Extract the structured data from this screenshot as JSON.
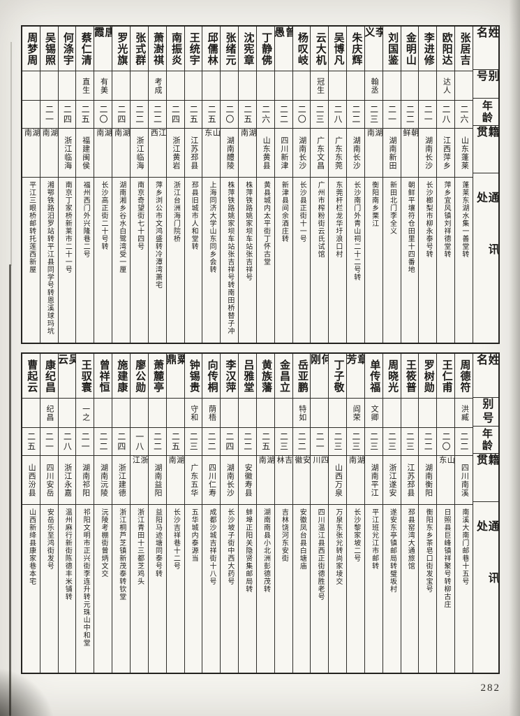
{
  "page": {
    "number": "282"
  },
  "table_headers": {
    "name": "姓名",
    "alias": "别号",
    "age": "年龄",
    "native_place": "籍贯",
    "address": "通讯处"
  },
  "tables": [
    {
      "entries": [
        {
          "name": "张居吉",
          "alias": "",
          "age": "二六",
          "native": "山东蓬莱",
          "address": "蓬莱东湖水集一善堂转"
        },
        {
          "name": "欧阳达",
          "alias": "达人",
          "age": "二八",
          "native": "江西萍乡",
          "address": "萍乡宜风镇刘祥德堂转"
        },
        {
          "name": "李进修",
          "alias": "",
          "age": "二一",
          "native": "湖南长沙",
          "address": "长沙榔梨市柳永泰号转"
        },
        {
          "name": "金明山",
          "alias": "",
          "age": "二二",
          "native": "朝鲜",
          "address": "朝鲜平壤符仓田里十四番地"
        },
        {
          "name": "刘国鉴",
          "alias": "",
          "age": "二一",
          "native": "湖南新田",
          "address": "新田北门李全义"
        },
        {
          "name": "李义",
          "alias": "翰丞",
          "age": "二三",
          "native": "湖南",
          "address": "衡阳南乡栗江"
        },
        {
          "name": "朱庆辉",
          "alias": "",
          "age": "二二",
          "native": "湖南长沙",
          "address": "长沙南门外青山祠二十二号转"
        },
        {
          "name": "吴博凡",
          "alias": "",
          "age": "二八",
          "native": "广东东莞",
          "address": "东莞杆栏龙华圩浪口村"
        },
        {
          "name": "云大机",
          "alias": "冠生",
          "age": "二三",
          "native": "广东文昌",
          "address": "广州市榨粉街云氏试馆"
        },
        {
          "name": "杨叹岐",
          "alias": "",
          "age": "二〇",
          "native": "湖南长沙",
          "address": "长沙县正街十一号"
        },
        {
          "name": "曾愚",
          "alias": "",
          "age": "二二",
          "native": "四川新津",
          "address": "新津县间余酒庄转"
        },
        {
          "name": "丁静佛",
          "alias": "",
          "age": "二六",
          "native": "山东黄县",
          "address": "黄县城内太平街丁怀古堂"
        },
        {
          "name": "沈宪章",
          "alias": "",
          "age": "二五",
          "native": "湖南",
          "address": "株萍铁路姚家坝车站张吉祥号"
        },
        {
          "name": "张绪元",
          "alias": "",
          "age": "二〇",
          "native": "湖南醴陵",
          "address": "株萍铁路姚家坝车站张吉祥号转南田桥替子冲"
        },
        {
          "name": "邱儒林",
          "alias": "",
          "age": "二五",
          "native": "山东",
          "address": "上海同济大学山东同乡会转"
        },
        {
          "name": "王统宇",
          "alias": "",
          "age": "二五",
          "native": "江苏邳县",
          "address": "邳县旧城市人和堂转"
        },
        {
          "name": "南振炎",
          "alias": "",
          "age": "二四",
          "native": "浙江黄岩",
          "address": "浙江台洲海门院桥"
        },
        {
          "name": "萧澍祺",
          "alias": "考成",
          "age": "二二",
          "native": "江西",
          "address": "萍乡浏公市文鸿盛转冷潭湾萧宅"
        },
        {
          "name": "张式群",
          "alias": "",
          "age": "二二",
          "native": "浙江临海",
          "address": "南京奇望街七十四号"
        },
        {
          "name": "罗光旗",
          "alias": "",
          "age": "二四",
          "native": "湖南",
          "address": "湖南湘乡谷水白鹭湾受一厘"
        },
        {
          "name": "唐霞",
          "alias": "有美",
          "age": "二〇",
          "native": "湖南",
          "address": "长沙高正街二十号转"
        },
        {
          "name": "蔡仁清",
          "alias": "直生",
          "age": "二五",
          "native": "福建闽侯",
          "address": "福州西门外兴隆巷二号"
        },
        {
          "name": "何涤宇",
          "alias": "",
          "age": "二四",
          "native": "浙江临海",
          "address": "南京丁家桥新莱市二十一号"
        },
        {
          "name": "吴锡照",
          "alias": "",
          "age": "二一",
          "native": "湖南",
          "address": "湘鄂铁路汨罗站转平江县同学号转恩溪球玛坑"
        },
        {
          "name": "周梦周",
          "alias": "",
          "age": "",
          "native": "湖南",
          "address": "平江三眼桥邮转托莲西新屋"
        }
      ]
    },
    {
      "entries": [
        {
          "name": "周德符",
          "alias": "洪臧",
          "age": "二二",
          "native": "四川南溪",
          "address": "南溪大南门邮巷十五号"
        },
        {
          "name": "王仁甫",
          "alias": "",
          "age": "二〇",
          "native": "山东",
          "address": "日照县巨峰镇祥聚号转柳古庄"
        },
        {
          "name": "罗树勋",
          "alias": "",
          "age": "二二",
          "native": "湖南衡阳",
          "address": "衡阳东乡茶皂口街发宝号"
        },
        {
          "name": "王筱普",
          "alias": "",
          "age": "二三",
          "native": "江苏邳县",
          "address": "邳县窑湾大通旅馆"
        },
        {
          "name": "周晓光",
          "alias": "",
          "age": "二三",
          "native": "浙江遂安",
          "address": "遂安东亭镇邮局转璧坂村"
        },
        {
          "name": "单传福",
          "alias": "文卿",
          "age": "二三",
          "native": "湖南平江",
          "address": "平江班兊江市邮转"
        },
        {
          "name": "章芳",
          "alias": "阎荣",
          "age": "二三",
          "native": "湖南",
          "address": "长沙黎家坡二号"
        },
        {
          "name": "丁子敬",
          "alias": "",
          "age": "二三",
          "native": "山西万泉",
          "address": "万泉东张兊转尚家堎交"
        },
        {
          "name": "何刚",
          "alias": "",
          "age": "二一",
          "native": "四川",
          "address": "四川温江县西正街德胜老号"
        },
        {
          "name": "岳亚鹏",
          "alias": "特如",
          "age": "二二",
          "native": "安徽",
          "address": "安徽凤台县白塘庙"
        },
        {
          "name": "金昌立",
          "alias": "",
          "age": "二三",
          "native": "吉林",
          "address": "吉林饶河东安街"
        },
        {
          "name": "黄族藩",
          "alias": "",
          "age": "二五",
          "native": "湖南",
          "address": "湖南南县小北洲彭德茂转"
        },
        {
          "name": "吕雅堂",
          "alias": "",
          "age": "二二",
          "native": "安徽寿县",
          "address": "蚌埠正阳关隐贤集邮局转"
        },
        {
          "name": "李汉萍",
          "alias": "",
          "age": "二四",
          "native": "湖南长沙",
          "address": "长沙坡子街中西大药号"
        },
        {
          "name": "向传桐",
          "alias": "荫梧",
          "age": "二二",
          "native": "四川仁寿",
          "address": "成都沙城吉祥街十八号"
        },
        {
          "name": "钟锡贵",
          "alias": "守和",
          "age": "二三",
          "native": "广东五华",
          "address": "五华城内泰源当"
        },
        {
          "name": "粟鼎",
          "alias": "",
          "age": "二五",
          "native": "湖南",
          "address": "长沙吉祥巷十二号"
        },
        {
          "name": "萧麓亭",
          "alias": "",
          "age": "二二",
          "native": "湖南益阳",
          "address": "益阳马迹塘同泰号转"
        },
        {
          "name": "廖公勋",
          "alias": "",
          "age": "一八",
          "native": "浙江",
          "address": "浙江青田十三都芝鸡头"
        },
        {
          "name": "施建康",
          "alias": "",
          "age": "二四",
          "native": "浙江建德",
          "address": "浙江桐芦芝镇新茂泰转钦堂"
        },
        {
          "name": "曾祥恒",
          "alias": "",
          "age": "二二",
          "native": "湖南沅陵",
          "address": "沅陵考棚街曾炳文交"
        },
        {
          "name": "王驭寰",
          "alias": "一之",
          "age": "二一",
          "native": "湖南祁阳",
          "address": "祁阳文明市正兴街李连升转元珠山中和堂"
        },
        {
          "name": "吴云",
          "alias": "",
          "age": "二八",
          "native": "浙江永嘉",
          "address": "温州麻行新街陈德丰米铺转"
        },
        {
          "name": "康纪昌",
          "alias": "纪昌",
          "age": "二一",
          "native": "四川安岳",
          "address": "安岳乐至鸿街发号"
        },
        {
          "name": "曹起云",
          "alias": "",
          "age": "二五",
          "native": "山西汾县",
          "address": "山西新绛县康家巷本宅"
        }
      ]
    }
  ]
}
